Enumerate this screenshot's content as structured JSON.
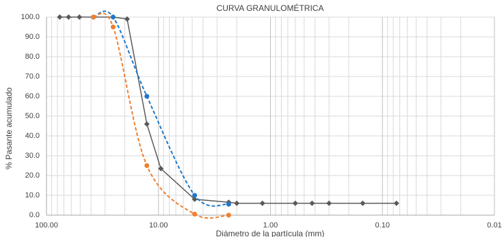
{
  "chart_data": {
    "type": "line",
    "title": "CURVA GRANULOMÉTRICA",
    "x_label": "Diámetro de la partícula (mm)",
    "y_label": "% Pasante acumulado",
    "xlog": true,
    "grid": true,
    "xlim": [
      100,
      0.01
    ],
    "ylim": [
      0,
      100
    ],
    "xticks": [
      {
        "value": 100,
        "label": "100.00"
      },
      {
        "value": 10,
        "label": "10.00"
      },
      {
        "value": 1,
        "label": "1.00"
      },
      {
        "value": 0.1,
        "label": "0.10"
      },
      {
        "value": 0.01,
        "label": "0.01"
      }
    ],
    "yticks": [
      {
        "value": 0,
        "label": "0.0"
      },
      {
        "value": 10,
        "label": "10.0"
      },
      {
        "value": 20,
        "label": "20.0"
      },
      {
        "value": 30,
        "label": "30.0"
      },
      {
        "value": 40,
        "label": "40.0"
      },
      {
        "value": 50,
        "label": "50.0"
      },
      {
        "value": 60,
        "label": "60.0"
      },
      {
        "value": 70,
        "label": "70.0"
      },
      {
        "value": 80,
        "label": "80.0"
      },
      {
        "value": 90,
        "label": "90.0"
      },
      {
        "value": 100,
        "label": "100.0"
      }
    ],
    "series": [
      {
        "color": "#595959",
        "marker": "diamond",
        "dash": false,
        "smooth": false,
        "x": [
          76.2,
          63.5,
          50.8,
          38.1,
          25.4,
          19.05,
          12.7,
          9.525,
          4.75,
          2.36,
          2.0,
          1.18,
          0.6,
          0.425,
          0.3,
          0.15,
          0.075
        ],
        "values": [
          100,
          100,
          100,
          100,
          100,
          99,
          46,
          23.5,
          8,
          6.5,
          6,
          6,
          6,
          6,
          6,
          6,
          6
        ]
      },
      {
        "color": "#1f77c9",
        "marker": "circle",
        "dash": true,
        "smooth": true,
        "x": [
          38.1,
          25.4,
          12.7,
          4.75,
          2.36
        ],
        "values": [
          100,
          100,
          60,
          10,
          5.5
        ]
      },
      {
        "color": "#f07f2e",
        "marker": "circle",
        "dash": true,
        "smooth": true,
        "x": [
          38.1,
          25.4,
          12.7,
          4.75,
          2.36
        ],
        "values": [
          100,
          95,
          25,
          0.5,
          0
        ]
      }
    ]
  }
}
